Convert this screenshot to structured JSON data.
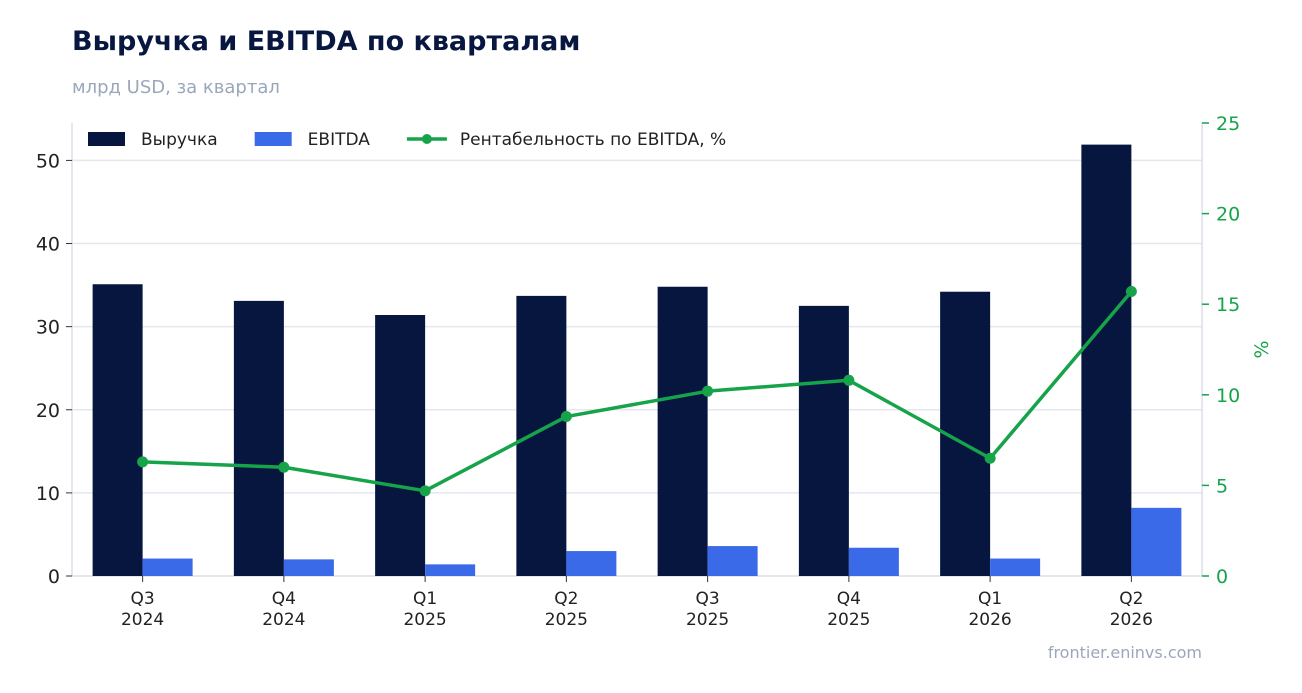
{
  "title": "Выручка и EBITDA по кварталам",
  "subtitle": "млрд USD, за квартал",
  "source": "frontier.eninvs.com",
  "colors": {
    "revenue": "#06163f",
    "ebitda": "#3b6ae8",
    "margin": "#16a34a",
    "grid": "#e3e7f0",
    "axis_text": "#222222"
  },
  "chart_data": {
    "type": "bar",
    "categories": [
      [
        "Q3",
        "2024"
      ],
      [
        "Q4",
        "2024"
      ],
      [
        "Q1",
        "2025"
      ],
      [
        "Q2",
        "2025"
      ],
      [
        "Q3",
        "2025"
      ],
      [
        "Q4",
        "2025"
      ],
      [
        "Q1",
        "2026"
      ],
      [
        "Q2",
        "2026"
      ]
    ],
    "series": [
      {
        "name": "Выручка",
        "type": "bar",
        "axis": "left",
        "color": "#06163f",
        "values": [
          35.1,
          33.1,
          31.4,
          33.7,
          34.8,
          32.5,
          34.2,
          51.9
        ]
      },
      {
        "name": "EBITDA",
        "type": "bar",
        "axis": "left",
        "color": "#3b6ae8",
        "values": [
          2.1,
          2.0,
          1.4,
          3.0,
          3.6,
          3.4,
          2.1,
          8.2
        ]
      },
      {
        "name": "Рентабельность по EBITDA, %",
        "type": "line",
        "axis": "right",
        "color": "#16a34a",
        "values": [
          6.3,
          6.0,
          4.7,
          8.8,
          10.2,
          10.8,
          6.5,
          15.7
        ]
      }
    ],
    "y_left": {
      "label": "",
      "ylim": [
        0,
        54.5
      ],
      "ticks": [
        0,
        10,
        20,
        30,
        40,
        50
      ]
    },
    "y_right": {
      "label": "%",
      "ylim": [
        0,
        25
      ],
      "ticks": [
        0,
        5,
        10,
        15,
        20,
        25
      ]
    },
    "grid": true,
    "legend": "top-left"
  }
}
